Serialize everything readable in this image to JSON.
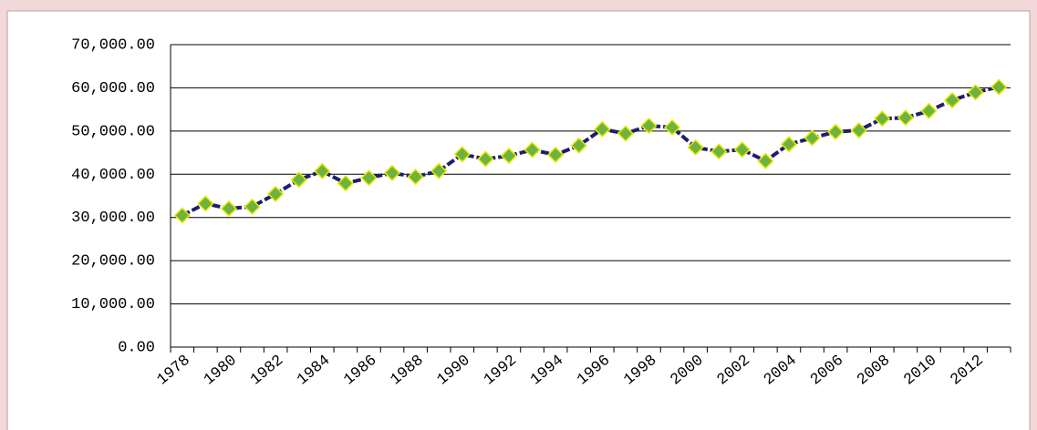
{
  "chart_data": {
    "type": "line",
    "categories": [
      "1978",
      null,
      "1980",
      null,
      "1982",
      null,
      "1984",
      null,
      "1986",
      null,
      "1988",
      null,
      "1990",
      null,
      "1992",
      null,
      "1994",
      null,
      "1996",
      null,
      "1998",
      null,
      "2000",
      null,
      "2002",
      null,
      "2004",
      null,
      "2006",
      null,
      "2008",
      null,
      "2010",
      null,
      "2012",
      null
    ],
    "values": [
      30477,
      33212,
      32056,
      32502,
      35450,
      38728,
      40731,
      37911,
      39151,
      40298,
      39408,
      40755,
      44624,
      43529,
      44266,
      45649,
      44510,
      46662,
      50454,
      49417,
      51230,
      50839,
      46218,
      45264,
      45706,
      43070,
      46947,
      48402,
      49804,
      50160,
      52871,
      53082,
      54648,
      57121,
      58958,
      60194
    ],
    "color": "#1f1f6e",
    "marker_color": "#6db33f",
    "marker_edge_color": "#e8e800",
    "ylim": [
      0,
      70000
    ],
    "yticks": [
      {
        "value": 0,
        "label": "0.00"
      },
      {
        "value": 10000,
        "label": "10,000.00"
      },
      {
        "value": 20000,
        "label": "20,000.00"
      },
      {
        "value": 30000,
        "label": "30,000.00"
      },
      {
        "value": 40000,
        "label": "40,000.00"
      },
      {
        "value": 50000,
        "label": "50,000.00"
      },
      {
        "value": 60000,
        "label": "60,000.00"
      },
      {
        "value": 70000,
        "label": "70,000.00"
      }
    ],
    "grid": true
  }
}
